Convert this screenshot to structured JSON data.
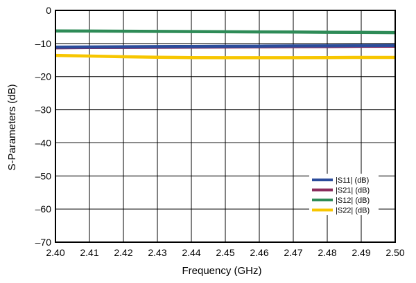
{
  "chart_data": {
    "type": "line",
    "title": "",
    "xlabel": "Frequency (GHz)",
    "ylabel": "S-Parameters (dB)",
    "xlim": [
      2.4,
      2.5
    ],
    "ylim": [
      -70,
      0
    ],
    "x_ticks": [
      "2.40",
      "2.41",
      "2.42",
      "2.43",
      "2.44",
      "2.45",
      "2.46",
      "2.47",
      "2.48",
      "2.49",
      "2.50"
    ],
    "y_ticks": [
      "0",
      "–10",
      "–20",
      "–30",
      "–40",
      "–50",
      "–60",
      "–70"
    ],
    "grid": true,
    "legend_position": "bottom-right",
    "x": [
      2.4,
      2.41,
      2.42,
      2.43,
      2.44,
      2.45,
      2.46,
      2.47,
      2.48,
      2.49,
      2.5
    ],
    "series": [
      {
        "name": "|S11| (dB)",
        "color": "#2b4c9b",
        "values": [
          -11.1,
          -11.05,
          -11.0,
          -10.95,
          -10.9,
          -10.85,
          -10.8,
          -10.75,
          -10.7,
          -10.65,
          -10.6
        ]
      },
      {
        "name": "|S21| (dB)",
        "color": "#8b2c5c",
        "values": [
          -11.3,
          -11.25,
          -11.2,
          -11.15,
          -11.1,
          -11.05,
          -11.0,
          -10.95,
          -10.9,
          -10.85,
          -10.8
        ]
      },
      {
        "name": "|S12| (dB)",
        "color": "#2e8b57",
        "values": [
          -6.2,
          -6.25,
          -6.3,
          -6.35,
          -6.4,
          -6.45,
          -6.5,
          -6.55,
          -6.6,
          -6.65,
          -6.7
        ]
      },
      {
        "name": "|S22| (dB)",
        "color": "#f7c600",
        "values": [
          -13.6,
          -13.8,
          -14.0,
          -14.15,
          -14.25,
          -14.3,
          -14.3,
          -14.3,
          -14.25,
          -14.2,
          -14.2
        ]
      }
    ]
  }
}
